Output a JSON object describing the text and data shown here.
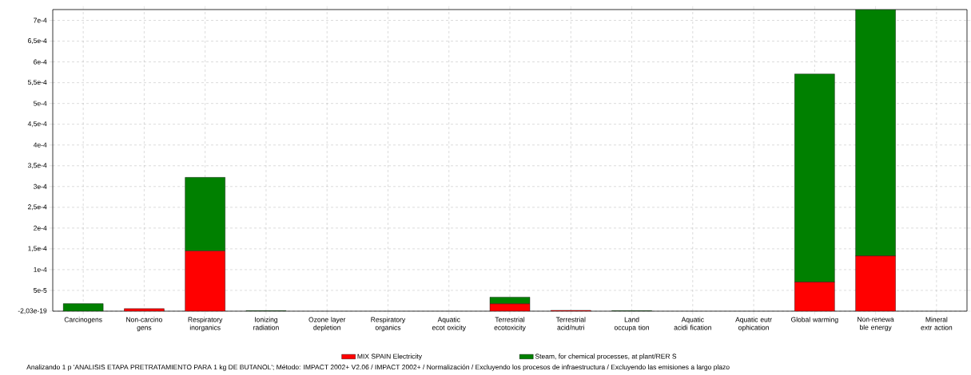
{
  "chart_data": {
    "type": "bar",
    "stacked": true,
    "categories": [
      "Carcinogens",
      "Non-carcino gens",
      "Respiratory inorganics",
      "Ionizing radiation",
      "Ozone layer depletion",
      "Respiratory organics",
      "Aquatic ecot oxicity",
      "Terrestrial ecotoxicity",
      "Terrestrial acid/nutri",
      "Land occupa tion",
      "Aquatic acidi fication",
      "Aquatic eutr ophication",
      "Global warming",
      "Non-renewa ble energy",
      "Mineral extr action"
    ],
    "series": [
      {
        "name": "MIX SPAIN Electricity",
        "color": "#ff0000",
        "values": [
          0,
          6e-06,
          0.000145,
          0,
          0,
          0,
          0,
          1.76e-05,
          2e-06,
          0,
          0,
          0,
          7e-05,
          0.000133,
          0
        ]
      },
      {
        "name": "Steam, for chemical processes, at plant/RER S",
        "color": "#008000",
        "values": [
          1.8e-05,
          0,
          0.000177,
          1e-06,
          0,
          0,
          0,
          1.62e-05,
          0,
          1e-06,
          0,
          0,
          0.000501,
          0.000593,
          0
        ]
      }
    ],
    "ylim": [
      0,
      0.000726
    ],
    "yticks": [
      {
        "value": 0,
        "label": "-2,03e-19"
      },
      {
        "value": 5e-05,
        "label": "5e-5"
      },
      {
        "value": 0.0001,
        "label": "1e-4"
      },
      {
        "value": 0.00015,
        "label": "1,5e-4"
      },
      {
        "value": 0.0002,
        "label": "2e-4"
      },
      {
        "value": 0.00025,
        "label": "2,5e-4"
      },
      {
        "value": 0.0003,
        "label": "3e-4"
      },
      {
        "value": 0.00035,
        "label": "3,5e-4"
      },
      {
        "value": 0.0004,
        "label": "4e-4"
      },
      {
        "value": 0.00045,
        "label": "4,5e-4"
      },
      {
        "value": 0.0005,
        "label": "5e-4"
      },
      {
        "value": 0.00055,
        "label": "5,5e-4"
      },
      {
        "value": 0.0006,
        "label": "6e-4"
      },
      {
        "value": 0.00065,
        "label": "6,5e-4"
      },
      {
        "value": 0.0007,
        "label": "7e-4"
      }
    ],
    "grid": true,
    "legend": "bottom",
    "annotations": [
      "Analizando 1 p 'ANALISIS ETAPA PRETRATAMIENTO PARA 1 kg DE BUTANOL';  Método: IMPACT 2002+ V2.06 / IMPACT 2002+ / Normalización / Excluyendo los procesos de infraestructura / Excluyendo las emisiones a largo plazo"
    ]
  }
}
